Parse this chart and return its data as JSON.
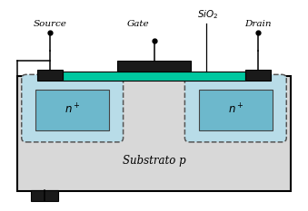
{
  "bg_color": "#ffffff",
  "substrate_color": "#d8d8d8",
  "substrate_border": "#000000",
  "ndiff_outer_color": "#b8dce8",
  "ndiff_inner_color": "#6db8cc",
  "gate_oxide_color": "#00c8a0",
  "metal_contact_color": "#1a1a1a",
  "dashed_color": "#555555",
  "label_source": "Source",
  "label_gate": "Gate",
  "label_drain": "Drain",
  "label_sio2": "$SiO_2$",
  "label_substrate": "Substrato p",
  "label_nplus": "$n^+$",
  "figsize": [
    3.39,
    2.33
  ],
  "dpi": 100
}
